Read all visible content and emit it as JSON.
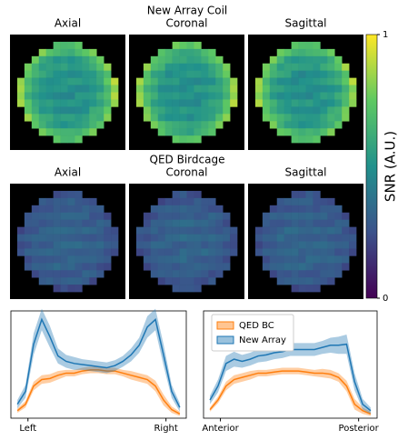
{
  "figure": {
    "rows": [
      {
        "title": "New Array Coil",
        "panels": [
          "Axial",
          "Coronal",
          "Sagittal"
        ]
      },
      {
        "title": "QED Birdcage",
        "panels": [
          "Axial",
          "Coronal",
          "Sagittal"
        ]
      }
    ],
    "colorbar": {
      "label": "SNR (A.U.)",
      "lim": [
        0,
        1
      ],
      "ticks": [
        0,
        1
      ]
    }
  },
  "chart_data": [
    {
      "type": "line",
      "x": [
        0,
        1,
        2,
        3,
        4,
        5,
        6,
        7,
        8,
        9,
        10,
        11,
        12,
        13,
        14,
        15,
        16,
        17,
        18,
        19,
        20
      ],
      "xlim": [
        -0.8,
        20.8
      ],
      "ylim": [
        0,
        1
      ],
      "xticks": [
        {
          "value": 1.3,
          "label": "Left"
        },
        {
          "value": 18.3,
          "label": "Right"
        }
      ],
      "series": [
        {
          "color": "#ff7f0e",
          "values": [
            0.07,
            0.13,
            0.3,
            0.36,
            0.37,
            0.4,
            0.42,
            0.42,
            0.44,
            0.45,
            0.45,
            0.44,
            0.44,
            0.42,
            0.4,
            0.38,
            0.36,
            0.3,
            0.17,
            0.08,
            0.04
          ],
          "errors": [
            0.02,
            0.03,
            0.04,
            0.04,
            0.04,
            0.04,
            0.03,
            0.03,
            0.03,
            0.03,
            0.03,
            0.03,
            0.03,
            0.03,
            0.04,
            0.04,
            0.04,
            0.05,
            0.05,
            0.03,
            0.02
          ]
        },
        {
          "color": "#1f77b4",
          "values": [
            0.13,
            0.25,
            0.69,
            0.92,
            0.76,
            0.58,
            0.53,
            0.51,
            0.5,
            0.49,
            0.48,
            0.47,
            0.49,
            0.53,
            0.59,
            0.68,
            0.85,
            0.92,
            0.59,
            0.25,
            0.1
          ],
          "errors": [
            0.04,
            0.06,
            0.1,
            0.1,
            0.1,
            0.07,
            0.06,
            0.06,
            0.05,
            0.05,
            0.05,
            0.05,
            0.05,
            0.05,
            0.06,
            0.07,
            0.1,
            0.1,
            0.1,
            0.06,
            0.04
          ]
        }
      ]
    },
    {
      "type": "line",
      "x": [
        0,
        1,
        2,
        3,
        4,
        5,
        6,
        7,
        8,
        9,
        10,
        11,
        12,
        13,
        14,
        15,
        16,
        17,
        18,
        19,
        20
      ],
      "xlim": [
        -0.8,
        20.8
      ],
      "ylim": [
        0,
        1
      ],
      "legend": "upper left",
      "xticks": [
        {
          "value": 1.3,
          "label": "Anterior"
        },
        {
          "value": 18.5,
          "label": "Posterior"
        }
      ],
      "series": [
        {
          "name": "QED BC",
          "color": "#ff7f0e",
          "values": [
            0.08,
            0.17,
            0.3,
            0.36,
            0.38,
            0.4,
            0.42,
            0.42,
            0.43,
            0.44,
            0.44,
            0.44,
            0.43,
            0.42,
            0.42,
            0.41,
            0.38,
            0.3,
            0.13,
            0.07,
            0.04
          ],
          "errors": [
            0.02,
            0.03,
            0.04,
            0.04,
            0.04,
            0.04,
            0.03,
            0.03,
            0.03,
            0.03,
            0.03,
            0.03,
            0.03,
            0.03,
            0.04,
            0.04,
            0.04,
            0.05,
            0.05,
            0.03,
            0.02
          ]
        },
        {
          "name": "New Array",
          "color": "#1f77b4",
          "values": [
            0.17,
            0.3,
            0.51,
            0.55,
            0.53,
            0.55,
            0.58,
            0.59,
            0.61,
            0.62,
            0.64,
            0.64,
            0.64,
            0.64,
            0.66,
            0.68,
            0.68,
            0.69,
            0.34,
            0.13,
            0.07
          ],
          "errors": [
            0.04,
            0.06,
            0.07,
            0.07,
            0.06,
            0.06,
            0.06,
            0.06,
            0.06,
            0.06,
            0.06,
            0.06,
            0.06,
            0.06,
            0.06,
            0.07,
            0.08,
            0.09,
            0.08,
            0.05,
            0.03
          ]
        }
      ]
    }
  ]
}
